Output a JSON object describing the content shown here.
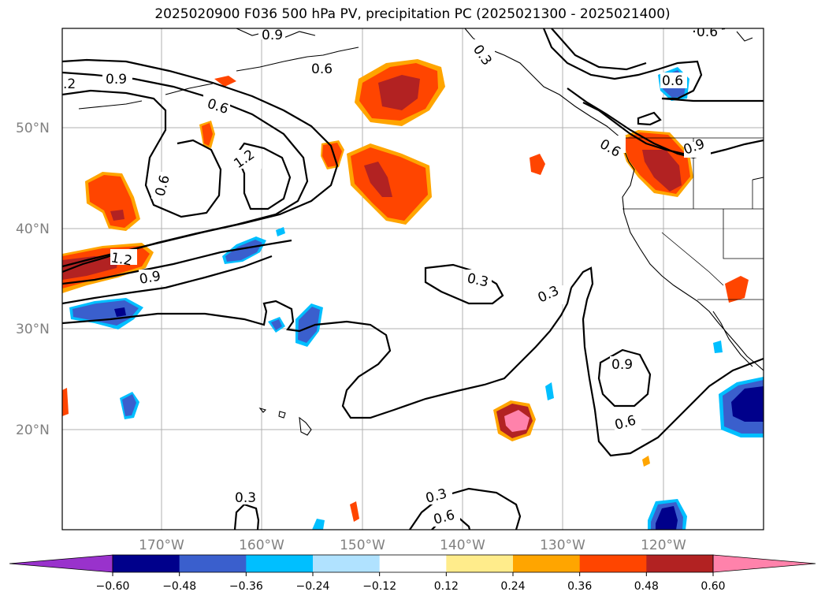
{
  "title": "2025020900 F036 500 hPa PV, precipitation PC (2025021300 - 2025021400)",
  "lat_labels": [
    "50°N",
    "40°N",
    "30°N",
    "20°N"
  ],
  "lon_labels": [
    "170°W",
    "160°W",
    "150°W",
    "140°W",
    "130°W",
    "120°W"
  ],
  "colorbar": {
    "colors": [
      "#9932cc",
      "#00008b",
      "#3a5fcd",
      "#00bfff",
      "#b0e2ff",
      "#ffffff",
      "#ffec8b",
      "#ffa500",
      "#ff4500",
      "#b22222",
      "#ff82ab"
    ],
    "labels": [
      "−0.60",
      "−0.48",
      "−0.36",
      "−0.24",
      "−0.12",
      "0.12",
      "0.24",
      "0.36",
      "0.48",
      "0.60"
    ]
  },
  "contour_labels": {
    "c1": "0.9",
    "c2": "0.6",
    "c3": "0.6",
    "c4": "0.3",
    "c5": "1.2",
    "c6": "0.6",
    "c7": "1.2",
    "c8": "0.9",
    "c9": "0.6",
    "c10": "0.3",
    "c11": "0.3",
    "c12": "0.9",
    "c13": "0.6",
    "c14": "0.3",
    "c15": "0.3",
    "c16": "0.6",
    "c17": "0.9",
    "c18": "0.6",
    "c19": ".2",
    "c20": "0.6",
    "c21": "0.9"
  }
}
